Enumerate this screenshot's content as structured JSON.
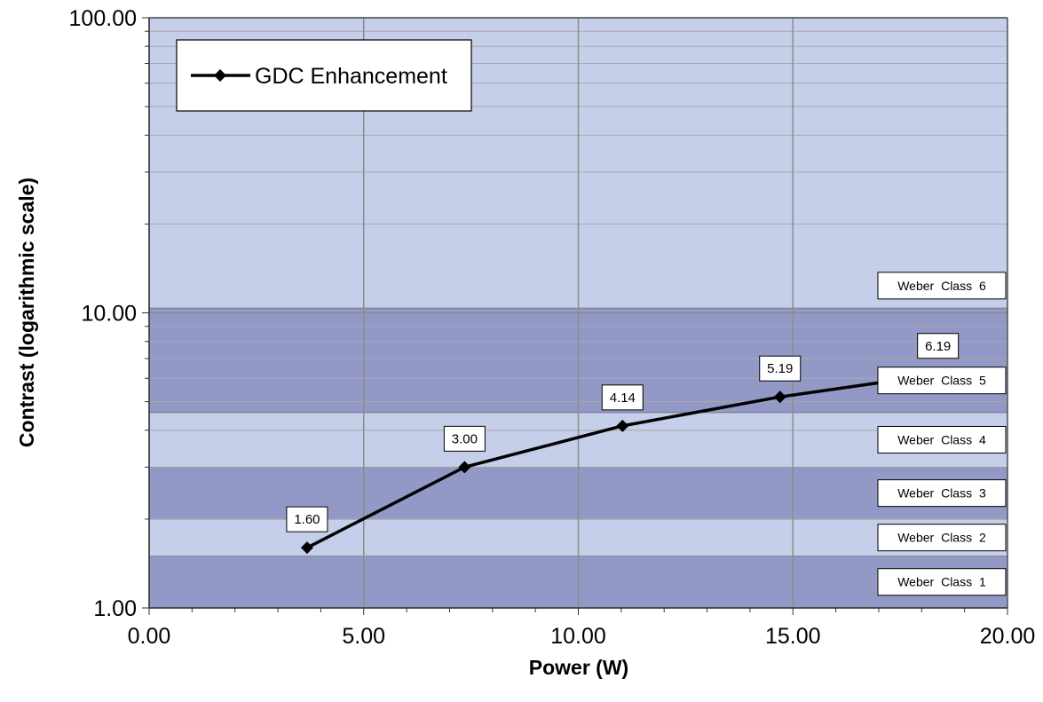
{
  "chart_data": {
    "type": "line",
    "title": "",
    "xlabel": "Power (W)",
    "ylabel": "Contrast (logarithmic scale)",
    "xlim": [
      0,
      20
    ],
    "ylim": [
      1,
      100
    ],
    "y_scale": "log",
    "grid": true,
    "legend_position": "top-left",
    "x_ticks": [
      "0.00",
      "5.00",
      "10.00",
      "15.00",
      "20.00"
    ],
    "y_ticks": [
      "1.00",
      "10.00",
      "100.00"
    ],
    "series": [
      {
        "name": "GDC Enhancement",
        "color": "#000000",
        "marker": "diamond",
        "x": [
          3.68,
          7.35,
          11.03,
          14.7,
          18.38
        ],
        "y": [
          1.6,
          3.0,
          4.14,
          5.19,
          6.19
        ],
        "labels": [
          "1.60",
          "3.00",
          "4.14",
          "5.19",
          "6.19"
        ]
      }
    ],
    "bands": [
      {
        "label": "Weber  Class  1",
        "from": 1.0,
        "to": 1.5,
        "shade": "dark"
      },
      {
        "label": "Weber  Class  2",
        "from": 1.5,
        "to": 2.0,
        "shade": "light"
      },
      {
        "label": "Weber  Class  3",
        "from": 2.0,
        "to": 3.0,
        "shade": "dark"
      },
      {
        "label": "Weber  Class  4",
        "from": 3.0,
        "to": 4.6,
        "shade": "light"
      },
      {
        "label": "Weber  Class  5",
        "from": 4.6,
        "to": 10.4,
        "shade": "dark"
      },
      {
        "label": "Weber  Class  6",
        "from": 10.4,
        "to": 100.0,
        "shade": "light"
      }
    ],
    "colors": {
      "band_light": "#c5cfe9",
      "band_dark": "#9399c6",
      "grid": "#8c8c8c",
      "axis": "#333333"
    }
  }
}
